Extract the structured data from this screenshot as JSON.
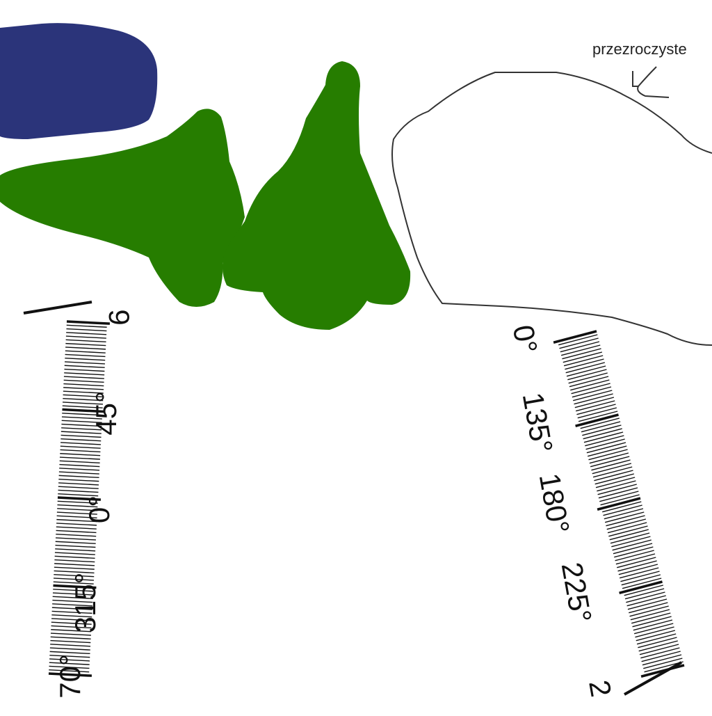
{
  "annotation": "przezroczyste",
  "colors": {
    "blue_shape": "#2b347a",
    "green_shape": "#267d00",
    "outline": "#333333",
    "scale_ink": "#111111"
  },
  "left_scale": {
    "labels": [
      "9",
      "45°",
      "0°",
      "315°",
      "70°"
    ]
  },
  "right_scale": {
    "labels": [
      "0°",
      "135°",
      "180°",
      "225°",
      "2"
    ]
  }
}
